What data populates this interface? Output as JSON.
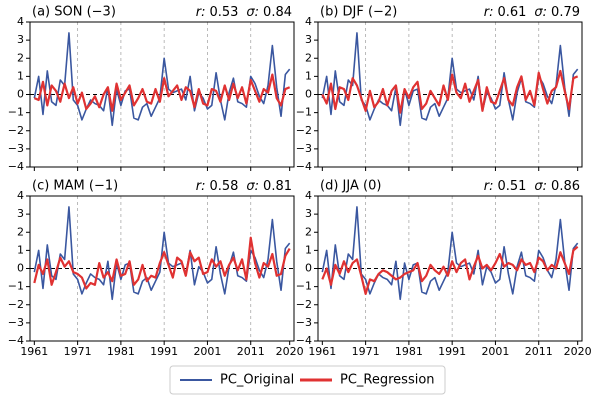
{
  "chart_data": [
    {
      "type": "line",
      "title": "(a) SON (−3)",
      "stats": [
        {
          "symbol": "r:",
          "value": 0.53
        },
        {
          "symbol": "σ:",
          "value": 0.84
        }
      ],
      "x": [
        1961,
        1962,
        1963,
        1964,
        1965,
        1966,
        1967,
        1968,
        1969,
        1970,
        1971,
        1972,
        1973,
        1974,
        1975,
        1976,
        1977,
        1978,
        1979,
        1980,
        1981,
        1982,
        1983,
        1984,
        1985,
        1986,
        1987,
        1988,
        1989,
        1990,
        1991,
        1992,
        1993,
        1994,
        1995,
        1996,
        1997,
        1998,
        1999,
        2000,
        2001,
        2002,
        2003,
        2004,
        2005,
        2006,
        2007,
        2008,
        2009,
        2010,
        2011,
        2012,
        2013,
        2014,
        2015,
        2016,
        2017,
        2018,
        2019,
        2020
      ],
      "series": [
        {
          "name": "PC_Original",
          "color": "#3a57a0",
          "values": [
            -0.2,
            1.0,
            -1.1,
            1.3,
            -0.4,
            -0.6,
            0.8,
            0.5,
            3.4,
            -0.3,
            -0.6,
            -1.4,
            -0.8,
            -0.3,
            -0.5,
            -0.6,
            -0.9,
            0.4,
            -1.7,
            0.3,
            -0.6,
            0.2,
            0.3,
            -1.3,
            -1.4,
            -0.7,
            -0.5,
            -1.2,
            -0.7,
            -0.2,
            2.0,
            0.3,
            0.1,
            0.2,
            0.3,
            -0.3,
            1.0,
            -0.9,
            0.1,
            -0.2,
            -0.8,
            -0.6,
            1.2,
            -0.3,
            -1.4,
            0.1,
            0.9,
            -0.4,
            -0.5,
            -0.7,
            1.0,
            0.6,
            -0.1,
            -0.5,
            0.5,
            2.7,
            0.4,
            -1.2,
            1.1,
            1.4
          ]
        },
        {
          "name": "PC_Regression",
          "color": "#e03232",
          "values": [
            -0.2,
            -0.3,
            0.7,
            -0.6,
            0.5,
            0.2,
            -0.4,
            0.6,
            -0.2,
            0.4,
            -0.5,
            0.1,
            -0.8,
            -0.5,
            -0.1,
            -0.7,
            0.0,
            0.4,
            -0.9,
            0.6,
            -0.3,
            0.1,
            0.5,
            -0.6,
            -0.2,
            0.3,
            -0.4,
            -0.5,
            0.3,
            -0.4,
            0.9,
            -0.1,
            0.2,
            0.5,
            -0.3,
            0.4,
            0.2,
            -0.7,
            0.3,
            -0.5,
            -0.6,
            0.3,
            0.2,
            -0.4,
            0.5,
            -0.3,
            0.6,
            -0.2,
            0.4,
            -0.5,
            0.8,
            0.2,
            -0.4,
            0.3,
            0.1,
            1.1,
            -0.2,
            -0.6,
            0.3,
            0.4
          ]
        }
      ],
      "xlim": [
        1960,
        2021
      ],
      "xticks": [
        1961,
        1971,
        1981,
        1991,
        2001,
        2011,
        2020
      ],
      "ylim": [
        -4,
        4
      ],
      "yticks": [
        {
          "value": -4,
          "label": "−4"
        },
        {
          "value": -3,
          "label": "−3"
        },
        {
          "value": -2,
          "label": "−2"
        },
        {
          "value": -1,
          "label": "−1"
        },
        0,
        1,
        2,
        3,
        4
      ]
    },
    {
      "type": "line",
      "title": "(b) DJF (−2)",
      "stats": [
        {
          "symbol": "r:",
          "value": 0.61
        },
        {
          "symbol": "σ:",
          "value": 0.79
        }
      ],
      "x": [
        1961,
        1962,
        1963,
        1964,
        1965,
        1966,
        1967,
        1968,
        1969,
        1970,
        1971,
        1972,
        1973,
        1974,
        1975,
        1976,
        1977,
        1978,
        1979,
        1980,
        1981,
        1982,
        1983,
        1984,
        1985,
        1986,
        1987,
        1988,
        1989,
        1990,
        1991,
        1992,
        1993,
        1994,
        1995,
        1996,
        1997,
        1998,
        1999,
        2000,
        2001,
        2002,
        2003,
        2004,
        2005,
        2006,
        2007,
        2008,
        2009,
        2010,
        2011,
        2012,
        2013,
        2014,
        2015,
        2016,
        2017,
        2018,
        2019,
        2020
      ],
      "series": [
        {
          "name": "PC_Original",
          "color": "#3a57a0",
          "values": [
            -0.2,
            1.0,
            -1.1,
            1.3,
            -0.4,
            -0.6,
            0.8,
            0.5,
            3.4,
            -0.3,
            -0.6,
            -1.4,
            -0.8,
            -0.3,
            -0.5,
            -0.6,
            -0.9,
            0.4,
            -1.7,
            0.3,
            -0.6,
            0.2,
            0.3,
            -1.3,
            -1.4,
            -0.7,
            -0.5,
            -1.2,
            -0.7,
            -0.2,
            2.0,
            0.3,
            0.1,
            0.2,
            0.3,
            -0.3,
            1.0,
            -0.9,
            0.1,
            -0.2,
            -0.8,
            -0.6,
            1.2,
            -0.3,
            -1.4,
            0.1,
            0.9,
            -0.4,
            -0.5,
            -0.7,
            1.0,
            0.6,
            -0.1,
            -0.5,
            0.5,
            2.7,
            0.4,
            -1.2,
            1.1,
            1.4
          ]
        },
        {
          "name": "PC_Regression",
          "color": "#e03232",
          "values": [
            0.0,
            -0.5,
            0.6,
            -0.8,
            0.4,
            0.3,
            -0.3,
            0.9,
            0.5,
            -0.2,
            -0.9,
            0.2,
            -0.7,
            -0.4,
            0.3,
            -0.6,
            0.2,
            0.5,
            -1.0,
            0.3,
            -0.2,
            0.4,
            0.7,
            -0.8,
            -0.5,
            0.2,
            -0.2,
            -0.6,
            0.5,
            -0.3,
            1.1,
            0.1,
            -0.2,
            0.6,
            -0.4,
            0.2,
            0.8,
            -0.9,
            0.4,
            -0.4,
            -0.5,
            0.2,
            0.9,
            -0.3,
            -0.6,
            0.4,
            1.0,
            -0.3,
            0.2,
            -0.6,
            1.2,
            0.3,
            -0.5,
            0.2,
            0.4,
            1.3,
            0.2,
            -0.8,
            0.9,
            1.0
          ]
        }
      ],
      "xlim": [
        1960,
        2021
      ],
      "xticks": [
        1961,
        1971,
        1981,
        1991,
        2001,
        2011,
        2020
      ],
      "ylim": [
        -4,
        4
      ],
      "yticks": [
        {
          "value": -4,
          "label": "−4"
        },
        {
          "value": -3,
          "label": "−3"
        },
        {
          "value": -2,
          "label": "−2"
        },
        {
          "value": -1,
          "label": "−1"
        },
        0,
        1,
        2,
        3,
        4
      ]
    },
    {
      "type": "line",
      "title": "(c) MAM (−1)",
      "stats": [
        {
          "symbol": "r:",
          "value": 0.58
        },
        {
          "symbol": "σ:",
          "value": 0.81
        }
      ],
      "x": [
        1961,
        1962,
        1963,
        1964,
        1965,
        1966,
        1967,
        1968,
        1969,
        1970,
        1971,
        1972,
        1973,
        1974,
        1975,
        1976,
        1977,
        1978,
        1979,
        1980,
        1981,
        1982,
        1983,
        1984,
        1985,
        1986,
        1987,
        1988,
        1989,
        1990,
        1991,
        1992,
        1993,
        1994,
        1995,
        1996,
        1997,
        1998,
        1999,
        2000,
        2001,
        2002,
        2003,
        2004,
        2005,
        2006,
        2007,
        2008,
        2009,
        2010,
        2011,
        2012,
        2013,
        2014,
        2015,
        2016,
        2017,
        2018,
        2019,
        2020
      ],
      "series": [
        {
          "name": "PC_Original",
          "color": "#3a57a0",
          "values": [
            -0.2,
            1.0,
            -1.1,
            1.3,
            -0.4,
            -0.6,
            0.8,
            0.5,
            3.4,
            -0.3,
            -0.6,
            -1.4,
            -0.8,
            -0.3,
            -0.5,
            -0.6,
            -0.9,
            0.4,
            -1.7,
            0.3,
            -0.6,
            0.2,
            0.3,
            -1.3,
            -1.4,
            -0.7,
            -0.5,
            -1.2,
            -0.7,
            -0.2,
            2.0,
            0.3,
            0.1,
            0.2,
            0.3,
            -0.3,
            1.0,
            -0.9,
            0.1,
            -0.2,
            -0.8,
            -0.6,
            1.2,
            -0.3,
            -1.4,
            0.1,
            0.9,
            -0.4,
            -0.5,
            -0.7,
            1.0,
            0.6,
            -0.1,
            -0.5,
            0.5,
            2.7,
            0.4,
            -1.2,
            1.1,
            1.4
          ]
        },
        {
          "name": "PC_Regression",
          "color": "#e03232",
          "values": [
            -0.8,
            0.2,
            -0.3,
            0.5,
            -0.9,
            -0.2,
            0.6,
            0.1,
            0.4,
            -0.2,
            -0.3,
            -0.5,
            -1.1,
            -0.8,
            -0.9,
            0.3,
            -0.5,
            -0.2,
            -0.7,
            0.5,
            -0.4,
            -0.3,
            0.4,
            -0.9,
            -0.6,
            0.2,
            -0.7,
            -0.4,
            -0.5,
            0.3,
            0.9,
            0.2,
            -0.5,
            0.6,
            0.4,
            -0.4,
            0.9,
            0.4,
            0.6,
            -0.3,
            -0.2,
            0.5,
            0.1,
            0.4,
            -0.4,
            0.2,
            0.6,
            -0.1,
            0.5,
            -0.6,
            1.7,
            0.3,
            -0.5,
            0.3,
            0.1,
            0.8,
            -0.4,
            -0.3,
            0.7,
            1.1
          ]
        }
      ],
      "xlim": [
        1960,
        2021
      ],
      "xticks": [
        1961,
        1971,
        1981,
        1991,
        2001,
        2011,
        2020
      ],
      "ylim": [
        -4,
        4
      ],
      "yticks": [
        {
          "value": -4,
          "label": "−4"
        },
        {
          "value": -3,
          "label": "−3"
        },
        {
          "value": -2,
          "label": "−2"
        },
        {
          "value": -1,
          "label": "−1"
        },
        0,
        1,
        2,
        3,
        4
      ]
    },
    {
      "type": "line",
      "title": "(d) JJA (0)",
      "stats": [
        {
          "symbol": "r:",
          "value": 0.51
        },
        {
          "symbol": "σ:",
          "value": 0.86
        }
      ],
      "x": [
        1961,
        1962,
        1963,
        1964,
        1965,
        1966,
        1967,
        1968,
        1969,
        1970,
        1971,
        1972,
        1973,
        1974,
        1975,
        1976,
        1977,
        1978,
        1979,
        1980,
        1981,
        1982,
        1983,
        1984,
        1985,
        1986,
        1987,
        1988,
        1989,
        1990,
        1991,
        1992,
        1993,
        1994,
        1995,
        1996,
        1997,
        1998,
        1999,
        2000,
        2001,
        2002,
        2003,
        2004,
        2005,
        2006,
        2007,
        2008,
        2009,
        2010,
        2011,
        2012,
        2013,
        2014,
        2015,
        2016,
        2017,
        2018,
        2019,
        2020
      ],
      "series": [
        {
          "name": "PC_Original",
          "color": "#3a57a0",
          "values": [
            -0.2,
            1.0,
            -1.1,
            1.3,
            -0.4,
            -0.6,
            0.8,
            0.5,
            3.4,
            -0.3,
            -0.6,
            -1.4,
            -0.8,
            -0.3,
            -0.5,
            -0.6,
            -0.9,
            0.4,
            -1.7,
            0.3,
            -0.6,
            0.2,
            0.3,
            -1.3,
            -1.4,
            -0.7,
            -0.5,
            -1.2,
            -0.7,
            -0.2,
            2.0,
            0.3,
            0.1,
            0.2,
            0.3,
            -0.3,
            1.0,
            -0.9,
            0.1,
            -0.2,
            -0.8,
            -0.6,
            1.2,
            -0.3,
            -1.4,
            0.1,
            0.9,
            -0.4,
            -0.5,
            -0.7,
            1.0,
            0.6,
            -0.1,
            -0.5,
            0.5,
            2.7,
            0.4,
            -1.2,
            1.1,
            1.4
          ]
        },
        {
          "name": "PC_Regression",
          "color": "#e03232",
          "values": [
            -0.6,
            0.0,
            -0.9,
            0.2,
            -0.3,
            0.4,
            -0.2,
            0.3,
            0.5,
            -0.4,
            -1.4,
            -0.6,
            -0.7,
            -0.3,
            -0.1,
            -0.2,
            -0.4,
            -0.6,
            -0.5,
            -0.3,
            -0.2,
            -0.1,
            0.3,
            -0.7,
            -0.4,
            0.2,
            -0.1,
            -0.3,
            0.1,
            -0.4,
            0.4,
            -0.2,
            0.3,
            0.5,
            -0.6,
            0.1,
            0.7,
            0.0,
            0.2,
            -0.1,
            0.3,
            0.8,
            0.1,
            0.3,
            0.2,
            -0.1,
            0.5,
            0.2,
            0.3,
            -0.2,
            0.6,
            0.4,
            -0.1,
            0.2,
            0.0,
            0.9,
            0.3,
            -0.3,
            1.0,
            1.2
          ]
        }
      ],
      "xlim": [
        1960,
        2021
      ],
      "xticks": [
        1961,
        1971,
        1981,
        1991,
        2001,
        2011,
        2020
      ],
      "ylim": [
        -4,
        4
      ],
      "yticks": [
        {
          "value": -4,
          "label": "−4"
        },
        {
          "value": -3,
          "label": "−3"
        },
        {
          "value": -2,
          "label": "−2"
        },
        {
          "value": -1,
          "label": "−1"
        },
        0,
        1,
        2,
        3,
        4
      ]
    }
  ]
}
